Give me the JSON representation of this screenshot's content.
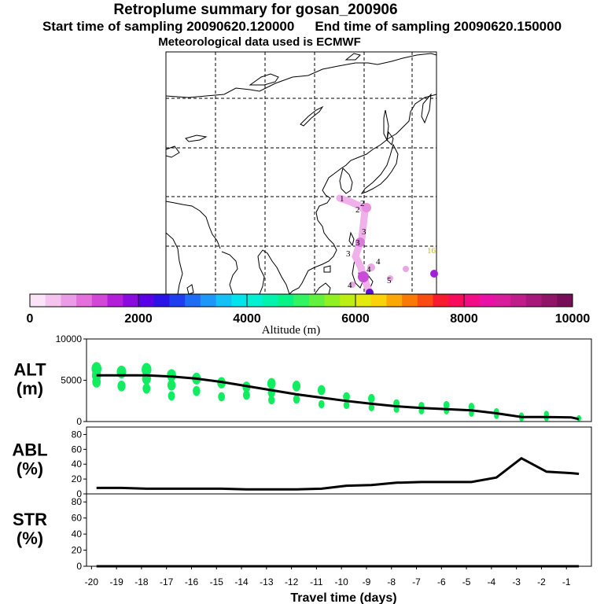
{
  "header": {
    "title": "Retroplume summary for gosan_200906",
    "start_label": "Start time of sampling 20090620.120000",
    "end_label": "End time of sampling 20090620.150000",
    "met_label": "Meteorological data used is ECMWF"
  },
  "colorbar": {
    "label": "Altitude (m)",
    "ticks": [
      "0",
      "2000",
      "4000",
      "6000",
      "8000",
      "10000"
    ],
    "range": [
      0,
      10000
    ],
    "colors": [
      "#fbe4f8",
      "#f4c4ef",
      "#ec9ce6",
      "#e46fdd",
      "#d246d8",
      "#b41edb",
      "#8a0ae0",
      "#5a00e6",
      "#2a12e8",
      "#1e3ef0",
      "#1f6cf6",
      "#1e98f8",
      "#12c2f6",
      "#00e4ee",
      "#00f2d2",
      "#00f4ae",
      "#06f486",
      "#30f460",
      "#62f23e",
      "#90f022",
      "#bcee12",
      "#e4ea0c",
      "#fbd10a",
      "#fba806",
      "#fb7a06",
      "#fb4a12",
      "#f81a2e",
      "#fa0a5a",
      "#f40c86",
      "#ea10a6",
      "#d81c9c",
      "#c01c8a",
      "#a8187a",
      "#901468",
      "#780e58"
    ]
  },
  "map": {
    "trajectory_labels": [
      "1",
      "2",
      "2",
      "3",
      "3",
      "3",
      "4",
      "4",
      "4",
      "5",
      "16"
    ]
  },
  "chart_data": [
    {
      "type": "line",
      "name": "ALT",
      "ylabel": "ALT\n(m)",
      "ylabel_lines": [
        "ALT",
        "(m)"
      ],
      "ylim": [
        0,
        10000
      ],
      "yticks": [
        "0",
        "5000",
        "10000"
      ],
      "x": [
        -19.8,
        -18.8,
        -17.8,
        -16.8,
        -15.8,
        -14.8,
        -13.8,
        -12.8,
        -11.8,
        -10.8,
        -9.8,
        -8.8,
        -7.8,
        -6.8,
        -5.8,
        -4.8,
        -3.8,
        -2.8,
        -1.8,
        -0.8,
        -0.5
      ],
      "values": [
        5600,
        5600,
        5600,
        5450,
        5200,
        4800,
        4300,
        3800,
        3300,
        2900,
        2500,
        2150,
        1850,
        1650,
        1500,
        1350,
        1000,
        550,
        550,
        500,
        300
      ],
      "scatter": [
        {
          "x": -19.8,
          "y": 6400
        },
        {
          "x": -19.8,
          "y": 4800
        },
        {
          "x": -19.8,
          "y": 5600
        },
        {
          "x": -18.8,
          "y": 6000
        },
        {
          "x": -18.8,
          "y": 4300
        },
        {
          "x": -17.8,
          "y": 6300
        },
        {
          "x": -17.8,
          "y": 5200
        },
        {
          "x": -17.8,
          "y": 4000
        },
        {
          "x": -16.8,
          "y": 5600
        },
        {
          "x": -16.8,
          "y": 4400
        },
        {
          "x": -16.8,
          "y": 3100
        },
        {
          "x": -15.8,
          "y": 5200
        },
        {
          "x": -15.8,
          "y": 3700
        },
        {
          "x": -14.8,
          "y": 4700
        },
        {
          "x": -14.8,
          "y": 3000
        },
        {
          "x": -13.8,
          "y": 4200
        },
        {
          "x": -13.8,
          "y": 3200
        },
        {
          "x": -12.8,
          "y": 4600
        },
        {
          "x": -12.8,
          "y": 3500
        },
        {
          "x": -12.8,
          "y": 2600
        },
        {
          "x": -11.8,
          "y": 4300
        },
        {
          "x": -11.8,
          "y": 2700
        },
        {
          "x": -10.8,
          "y": 3800
        },
        {
          "x": -10.8,
          "y": 2100
        },
        {
          "x": -9.8,
          "y": 3000
        },
        {
          "x": -9.8,
          "y": 2000
        },
        {
          "x": -8.8,
          "y": 2800
        },
        {
          "x": -8.8,
          "y": 1700
        },
        {
          "x": -7.8,
          "y": 2200
        },
        {
          "x": -7.8,
          "y": 1500
        },
        {
          "x": -6.8,
          "y": 1900
        },
        {
          "x": -6.8,
          "y": 1300
        },
        {
          "x": -5.8,
          "y": 2000
        },
        {
          "x": -5.8,
          "y": 1300
        },
        {
          "x": -4.8,
          "y": 1800
        },
        {
          "x": -4.8,
          "y": 1000
        },
        {
          "x": -3.8,
          "y": 1200
        },
        {
          "x": -3.8,
          "y": 700
        },
        {
          "x": -2.8,
          "y": 700
        },
        {
          "x": -2.8,
          "y": 400
        },
        {
          "x": -1.8,
          "y": 900
        },
        {
          "x": -1.8,
          "y": 400
        },
        {
          "x": -0.5,
          "y": 400
        }
      ],
      "scatter_color": "#10ee60"
    },
    {
      "type": "line",
      "name": "ABL",
      "ylabel": "ABL\n(%)",
      "ylabel_lines": [
        "ABL",
        "(%)"
      ],
      "ylim": [
        0,
        90
      ],
      "yticks": [
        "0",
        "20",
        "40",
        "60",
        "80"
      ],
      "x": [
        -19.8,
        -18.8,
        -17.8,
        -16.8,
        -15.8,
        -14.8,
        -13.8,
        -12.8,
        -11.8,
        -10.8,
        -9.8,
        -8.8,
        -7.8,
        -6.8,
        -5.8,
        -4.8,
        -3.8,
        -2.8,
        -1.8,
        -0.8,
        -0.5
      ],
      "values": [
        8,
        8,
        7,
        7,
        7,
        7,
        6,
        6,
        6,
        7,
        11,
        12,
        15,
        16,
        16,
        16,
        22,
        48,
        30,
        28,
        27
      ]
    },
    {
      "type": "line",
      "name": "STR",
      "ylabel": "STR\n(%)",
      "ylabel_lines": [
        "STR",
        "(%)"
      ],
      "ylim": [
        0,
        90
      ],
      "yticks": [
        "0",
        "20",
        "40",
        "60",
        "80"
      ],
      "x": [
        -19.8,
        -0.5
      ],
      "values": [
        0,
        0
      ]
    }
  ],
  "xaxis": {
    "xlabel": "Travel time (days)",
    "ticks": [
      "-20",
      "-19",
      "-18",
      "-17",
      "-16",
      "-15",
      "-14",
      "-13",
      "-12",
      "-11",
      "-10",
      "-9",
      "-8",
      "-7",
      "-6",
      "-5",
      "-4",
      "-3",
      "-2",
      "-1"
    ],
    "xlim": [
      -20.2,
      0
    ]
  }
}
